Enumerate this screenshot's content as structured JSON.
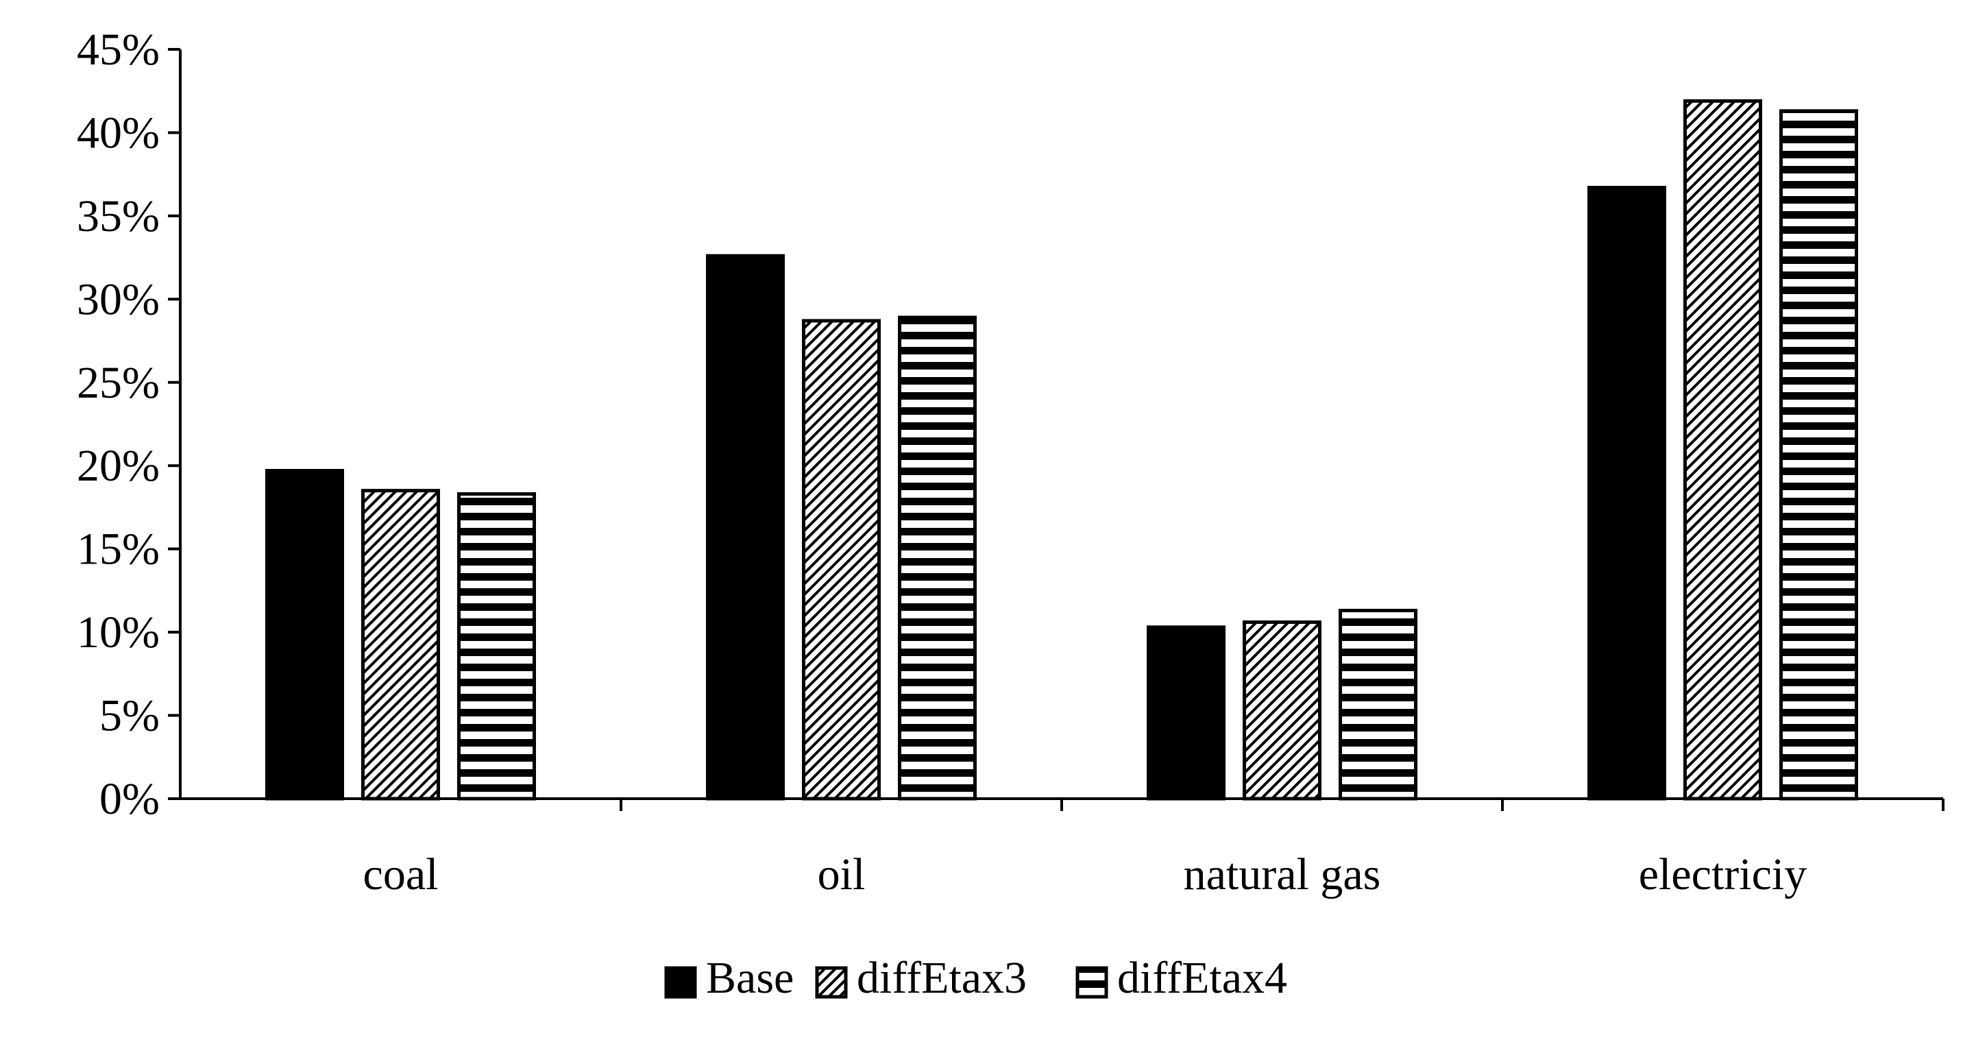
{
  "chart_data": {
    "type": "bar",
    "categories": [
      "coal",
      "oil",
      "natural gas",
      "electriciy"
    ],
    "series": [
      {
        "name": "Base",
        "pattern": "solid",
        "values": [
          19.7,
          32.6,
          10.3,
          36.7
        ]
      },
      {
        "name": "diffEtax3",
        "pattern": "diagonal-hatch",
        "values": [
          18.5,
          28.7,
          10.6,
          41.9
        ]
      },
      {
        "name": "diffEtax4",
        "pattern": "horizontal-stripes",
        "values": [
          18.3,
          28.9,
          11.3,
          41.3
        ]
      }
    ],
    "ylim": [
      0,
      45
    ],
    "yticks": [
      0,
      5,
      10,
      15,
      20,
      25,
      30,
      35,
      40,
      45
    ],
    "ytick_labels": [
      "0%",
      "5%",
      "10%",
      "15%",
      "20%",
      "25%",
      "30%",
      "35%",
      "40%",
      "45%"
    ],
    "title": "",
    "xlabel": "",
    "ylabel": "",
    "grid": false,
    "legend_position": "bottom-center",
    "colors": {
      "bar_fill": "#000000",
      "background": "#ffffff",
      "axis": "#000000"
    }
  }
}
